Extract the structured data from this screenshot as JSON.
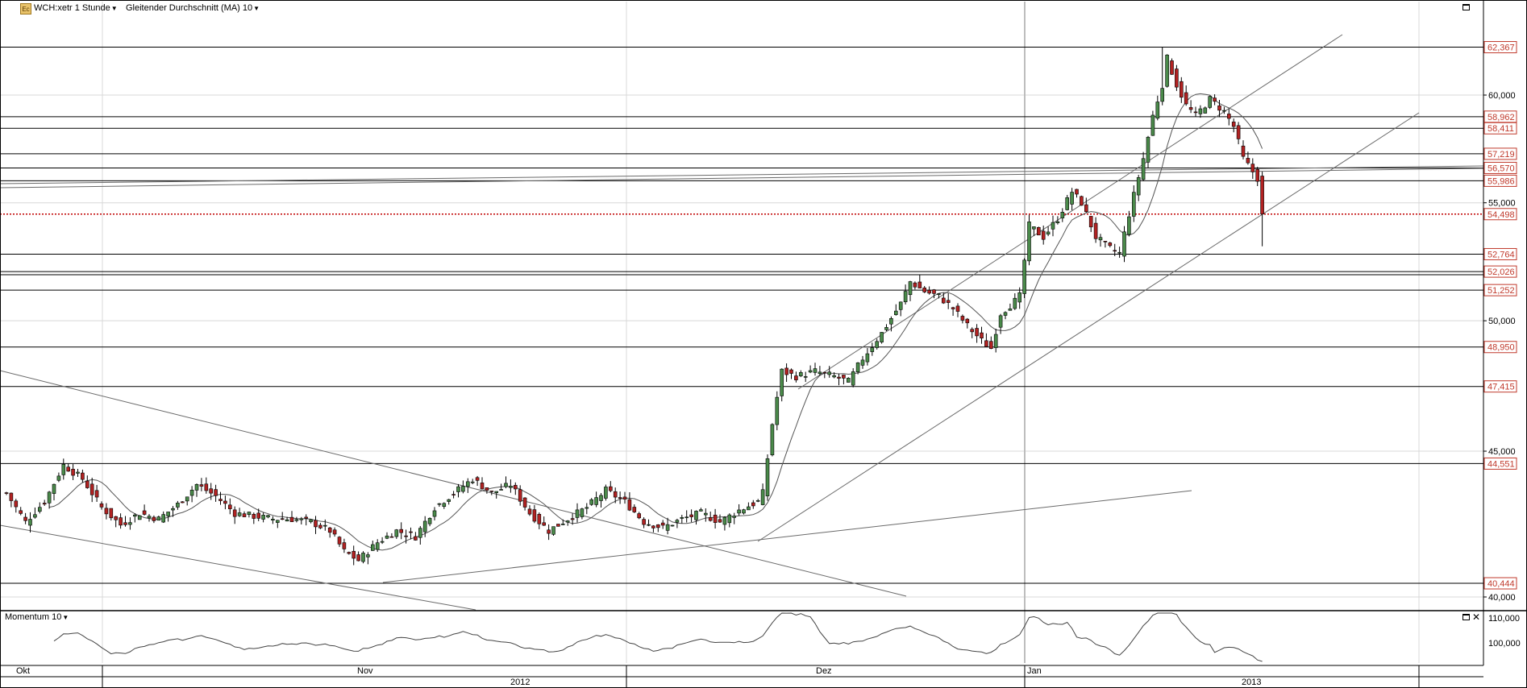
{
  "header": {
    "symbol": "WCH:xetr 1 Stunde",
    "indicator": "Gleitender Durchschnitt (MA) 10",
    "logo_text": "Ec"
  },
  "momentum": {
    "title": "Momentum 10",
    "axis_labels": [
      "110,000",
      "100,000"
    ]
  },
  "chart_data": {
    "type": "candlestick",
    "price_axis": {
      "scale": "log",
      "ticks": [
        "60,000",
        "55,000",
        "50,000",
        "45,000",
        "40,000"
      ]
    },
    "level_labels": [
      "62,367",
      "58,962",
      "58,411",
      "57,219",
      "56,570",
      "55,986",
      "54,498",
      "52,764",
      "52,026",
      "51,252",
      "48,950",
      "47,415",
      "44,551",
      "40,444"
    ],
    "last_price": "54,498",
    "month_labels": [
      "Okt",
      "Nov",
      "Dez",
      "Jan"
    ],
    "year_labels": [
      "2012",
      "2013"
    ],
    "anchors": [
      [
        0,
        43.5
      ],
      [
        4,
        42.5
      ],
      [
        8,
        43.2
      ],
      [
        12,
        44.5
      ],
      [
        16,
        44.0
      ],
      [
        20,
        43.0
      ],
      [
        24,
        42.4
      ],
      [
        28,
        42.8
      ],
      [
        32,
        42.6
      ],
      [
        36,
        43.1
      ],
      [
        40,
        43.8
      ],
      [
        44,
        43.4
      ],
      [
        48,
        42.8
      ],
      [
        52,
        42.7
      ],
      [
        56,
        42.6
      ],
      [
        60,
        42.6
      ],
      [
        64,
        42.5
      ],
      [
        68,
        42.2
      ],
      [
        71,
        41.5
      ],
      [
        74,
        41.2
      ],
      [
        78,
        41.8
      ],
      [
        82,
        42.2
      ],
      [
        86,
        42.0
      ],
      [
        90,
        43.0
      ],
      [
        94,
        43.5
      ],
      [
        98,
        44.0
      ],
      [
        102,
        43.5
      ],
      [
        106,
        43.8
      ],
      [
        110,
        42.8
      ],
      [
        114,
        42.2
      ],
      [
        118,
        42.6
      ],
      [
        122,
        43.0
      ],
      [
        126,
        43.6
      ],
      [
        130,
        43.2
      ],
      [
        134,
        42.5
      ],
      [
        138,
        42.3
      ],
      [
        142,
        42.6
      ],
      [
        146,
        42.8
      ],
      [
        150,
        42.5
      ],
      [
        154,
        42.9
      ],
      [
        158,
        43.2
      ],
      [
        159,
        43.5
      ],
      [
        161,
        46.0
      ],
      [
        163,
        48.0
      ],
      [
        166,
        47.8
      ],
      [
        170,
        48.0
      ],
      [
        174,
        47.8
      ],
      [
        177,
        47.6
      ],
      [
        180,
        48.5
      ],
      [
        184,
        49.5
      ],
      [
        188,
        50.7
      ],
      [
        190,
        51.6
      ],
      [
        193,
        51.2
      ],
      [
        196,
        51.0
      ],
      [
        199,
        50.5
      ],
      [
        202,
        49.8
      ],
      [
        205,
        49.2
      ],
      [
        207,
        48.9
      ],
      [
        209,
        50.3
      ],
      [
        212,
        50.8
      ],
      [
        213,
        51.0
      ],
      [
        215,
        54.0
      ],
      [
        218,
        53.5
      ],
      [
        221,
        54.3
      ],
      [
        224,
        55.5
      ],
      [
        226,
        55.0
      ],
      [
        229,
        53.5
      ],
      [
        232,
        53.0
      ],
      [
        234,
        52.8
      ],
      [
        236,
        54.5
      ],
      [
        239,
        57.0
      ],
      [
        241,
        59.0
      ],
      [
        243,
        60.5
      ],
      [
        244,
        61.8
      ],
      [
        246,
        60.5
      ],
      [
        248,
        59.5
      ],
      [
        250,
        59.0
      ],
      [
        253,
        59.8
      ],
      [
        256,
        59.2
      ],
      [
        258,
        58.5
      ],
      [
        260,
        57.0
      ],
      [
        262,
        56.4
      ],
      [
        263,
        56.1
      ],
      [
        264,
        54.5
      ]
    ],
    "moving_average_period": 10,
    "momentum_period": 10
  },
  "colors": {
    "up": "#4a8a4a",
    "down": "#b22222",
    "level_label": "#c0392b",
    "price_line": "#c00000",
    "grid": "#d8d8d8",
    "line": "#000000",
    "trend": "#6a6a6a"
  }
}
